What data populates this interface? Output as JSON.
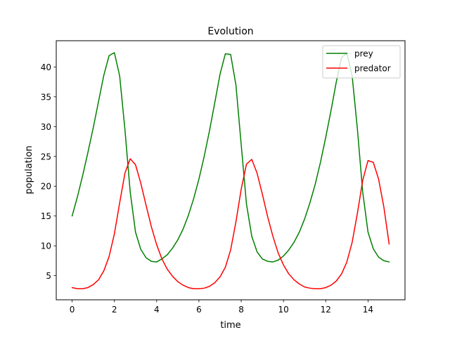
{
  "chart_data": {
    "type": "line",
    "title": "Evolution",
    "xlabel": "time",
    "ylabel": "population",
    "xlim": [
      -0.75,
      15.75
    ],
    "ylim": [
      0.95,
      44.4
    ],
    "xticks": [
      0,
      2,
      4,
      6,
      8,
      10,
      12,
      14
    ],
    "yticks": [
      5,
      10,
      15,
      20,
      25,
      30,
      35,
      40
    ],
    "grid": false,
    "legend": "top-right",
    "series": [
      {
        "name": "prey",
        "color": "#008000",
        "x": [
          0,
          0.25,
          0.5,
          0.75,
          1.0,
          1.25,
          1.5,
          1.75,
          2.0,
          2.25,
          2.5,
          2.75,
          3.0,
          3.25,
          3.5,
          3.75,
          4.0,
          4.25,
          4.5,
          4.75,
          5.0,
          5.25,
          5.5,
          5.75,
          6.0,
          6.25,
          6.5,
          6.75,
          7.0,
          7.25,
          7.5,
          7.75,
          8.0,
          8.25,
          8.5,
          8.75,
          9.0,
          9.25,
          9.5,
          9.75,
          10.0,
          10.25,
          10.5,
          10.75,
          11.0,
          11.25,
          11.5,
          11.75,
          12.0,
          12.25,
          12.5,
          12.75,
          13.0,
          13.25,
          13.5,
          13.75,
          14.0,
          14.25,
          14.5,
          14.75,
          15.0
        ],
        "y": [
          15.0,
          18.2,
          21.8,
          25.7,
          29.8,
          34.2,
          38.6,
          41.9,
          42.4,
          38.5,
          29.5,
          19.0,
          12.3,
          9.4,
          8.0,
          7.4,
          7.3,
          7.8,
          8.5,
          9.6,
          11.0,
          12.8,
          15.1,
          17.9,
          21.2,
          25.0,
          29.3,
          34.0,
          38.8,
          42.2,
          42.1,
          37.0,
          27.0,
          17.0,
          11.6,
          9.0,
          7.8,
          7.4,
          7.3,
          7.6,
          8.3,
          9.3,
          10.6,
          12.3,
          14.5,
          17.2,
          20.3,
          24.0,
          28.2,
          32.7,
          37.5,
          41.6,
          42.3,
          38.5,
          29.5,
          19.0,
          12.3,
          9.5,
          8.1,
          7.5,
          7.3
        ]
      },
      {
        "name": "predator",
        "color": "#ff0000",
        "x": [
          0,
          0.25,
          0.5,
          0.75,
          1.0,
          1.25,
          1.5,
          1.75,
          2.0,
          2.25,
          2.5,
          2.75,
          3.0,
          3.25,
          3.5,
          3.75,
          4.0,
          4.25,
          4.5,
          4.75,
          5.0,
          5.25,
          5.5,
          5.75,
          6.0,
          6.25,
          6.5,
          6.75,
          7.0,
          7.25,
          7.5,
          7.75,
          8.0,
          8.25,
          8.5,
          8.75,
          9.0,
          9.25,
          9.5,
          9.75,
          10.0,
          10.25,
          10.5,
          10.75,
          11.0,
          11.25,
          11.5,
          11.75,
          12.0,
          12.25,
          12.5,
          12.75,
          13.0,
          13.25,
          13.5,
          13.75,
          14.0,
          14.25,
          14.5,
          14.75,
          15.0
        ],
        "y": [
          3.0,
          2.8,
          2.8,
          3.0,
          3.5,
          4.3,
          5.8,
          8.2,
          12.0,
          17.2,
          22.2,
          24.6,
          23.6,
          20.5,
          16.8,
          13.2,
          10.2,
          7.8,
          6.1,
          4.9,
          4.0,
          3.4,
          3.0,
          2.8,
          2.8,
          2.9,
          3.2,
          3.8,
          4.8,
          6.4,
          9.3,
          14.0,
          19.5,
          23.7,
          24.5,
          22.2,
          18.7,
          14.9,
          11.6,
          8.8,
          6.8,
          5.3,
          4.3,
          3.6,
          3.1,
          2.9,
          2.8,
          2.8,
          3.0,
          3.4,
          4.1,
          5.3,
          7.3,
          10.6,
          15.5,
          21.0,
          24.3,
          24.0,
          21.2,
          16.5,
          10.3
        ]
      }
    ]
  }
}
